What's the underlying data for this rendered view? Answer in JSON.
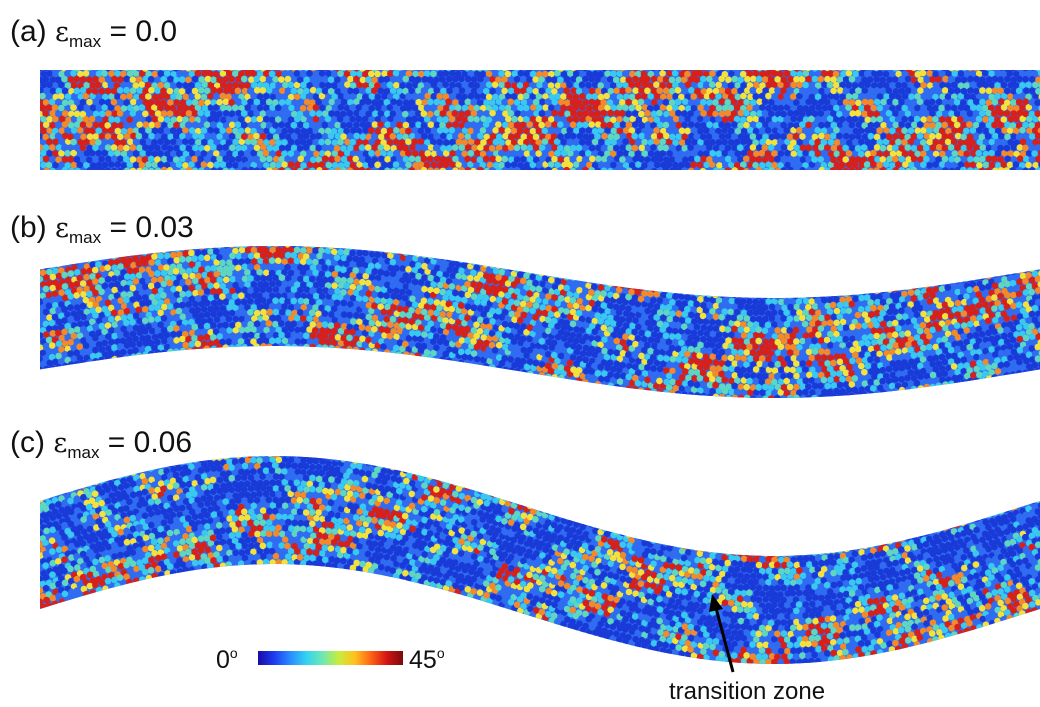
{
  "panels": [
    {
      "prefix": "(a)",
      "strain_symbol": "ε",
      "strain_subscript": "max",
      "strain_value": "= 0.0"
    },
    {
      "prefix": "(b)",
      "strain_symbol": "ε",
      "strain_subscript": "max",
      "strain_value": "= 0.03"
    },
    {
      "prefix": "(c)",
      "strain_symbol": "ε",
      "strain_subscript": "max",
      "strain_value": "= 0.06"
    }
  ],
  "colorbar": {
    "min_label": "0",
    "max_label": "45",
    "unit_glyph": "o",
    "colors": [
      "#1a0aa8",
      "#1e3cf0",
      "#2a8cff",
      "#32d2f2",
      "#6ee8b4",
      "#c8ec3c",
      "#ffc21e",
      "#ff6414",
      "#d21414",
      "#7a0a0a"
    ]
  },
  "annotation": {
    "text": "transition zone"
  },
  "particle_colors": {
    "dark_blue": "#1a3ad8",
    "blue": "#2f6cf2",
    "cyan": "#38c8f0",
    "teal": "#5ed6c0",
    "yellow": "#f4e23c",
    "orange": "#f4892a",
    "red": "#d8201a"
  }
}
